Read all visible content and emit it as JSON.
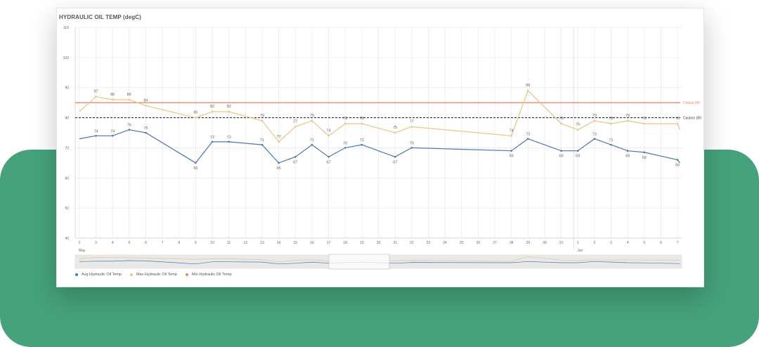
{
  "title": "HYDRAULIC OIL TEMP (degC)",
  "colors": {
    "avg": "#4a78ad",
    "max": "#e8c585",
    "critical": "#ef8668",
    "caution": "#333333",
    "grid": "#ece8f2",
    "minimap_bg": "#e9e9e9",
    "green": "#45a27c"
  },
  "chart_data": {
    "type": "line",
    "title": "HYDRAULIC OIL TEMP (degC)",
    "ylim": [
      40,
      110
    ],
    "yticks": [
      40,
      50,
      60,
      70,
      80,
      90,
      100,
      110
    ],
    "x_ticks": [
      {
        "day": 2,
        "label": "2"
      },
      {
        "day": 3,
        "label": "3"
      },
      {
        "day": 4,
        "label": "4"
      },
      {
        "day": 5,
        "label": "5"
      },
      {
        "day": 6,
        "label": "6"
      },
      {
        "day": 7,
        "label": "7"
      },
      {
        "day": 8,
        "label": "8"
      },
      {
        "day": 9,
        "label": "9"
      },
      {
        "day": 10,
        "label": "10"
      },
      {
        "day": 11,
        "label": "11"
      },
      {
        "day": 12,
        "label": "12"
      },
      {
        "day": 13,
        "label": "13"
      },
      {
        "day": 14,
        "label": "14"
      },
      {
        "day": 15,
        "label": "15"
      },
      {
        "day": 16,
        "label": "16"
      },
      {
        "day": 17,
        "label": "17"
      },
      {
        "day": 18,
        "label": "18"
      },
      {
        "day": 19,
        "label": "19"
      },
      {
        "day": 20,
        "label": "20"
      },
      {
        "day": 21,
        "label": "21"
      },
      {
        "day": 22,
        "label": "22"
      },
      {
        "day": 23,
        "label": "23"
      },
      {
        "day": 24,
        "label": "24"
      },
      {
        "day": 25,
        "label": "25"
      },
      {
        "day": 26,
        "label": "26"
      },
      {
        "day": 27,
        "label": "27"
      },
      {
        "day": 28,
        "label": "28"
      },
      {
        "day": 29,
        "label": "29"
      },
      {
        "day": 30,
        "label": "30"
      },
      {
        "day": 31,
        "label": "31"
      },
      {
        "day": 32,
        "label": "1"
      },
      {
        "day": 33,
        "label": "2"
      },
      {
        "day": 34,
        "label": "3"
      },
      {
        "day": 35,
        "label": "4"
      },
      {
        "day": 36,
        "label": "5"
      },
      {
        "day": 37,
        "label": "6"
      },
      {
        "day": 38,
        "label": "7"
      }
    ],
    "month_labels": [
      {
        "day": 2,
        "label": "May"
      },
      {
        "day": 32,
        "label": "Jun"
      }
    ],
    "series": [
      {
        "name": "Avg Hydraulic Oil Temp",
        "key": "avg",
        "points": [
          {
            "day": 2,
            "value": 73,
            "label": ""
          },
          {
            "day": 3,
            "value": 74,
            "label": "74"
          },
          {
            "day": 4,
            "value": 74,
            "label": "74"
          },
          {
            "day": 5,
            "value": 76,
            "label": "76"
          },
          {
            "day": 6,
            "value": 75,
            "label": "75"
          },
          {
            "day": 9,
            "value": 65,
            "label": "65"
          },
          {
            "day": 10,
            "value": 72,
            "label": "72"
          },
          {
            "day": 11,
            "value": 72,
            "label": "72"
          },
          {
            "day": 13,
            "value": 71,
            "label": "71"
          },
          {
            "day": 14,
            "value": 65,
            "label": "65"
          },
          {
            "day": 15,
            "value": 67,
            "label": "67"
          },
          {
            "day": 16,
            "value": 71,
            "label": "71"
          },
          {
            "day": 17,
            "value": 67,
            "label": "67"
          },
          {
            "day": 18,
            "value": 70,
            "label": "70"
          },
          {
            "day": 19,
            "value": 71,
            "label": "71"
          },
          {
            "day": 21,
            "value": 67,
            "label": "67"
          },
          {
            "day": 22,
            "value": 70,
            "label": "70"
          },
          {
            "day": 28,
            "value": 69,
            "label": "69"
          },
          {
            "day": 29,
            "value": 73,
            "label": "73"
          },
          {
            "day": 31,
            "value": 69,
            "label": "69"
          },
          {
            "day": 32,
            "value": 69,
            "label": "69"
          },
          {
            "day": 33,
            "value": 73,
            "label": "73"
          },
          {
            "day": 34,
            "value": 71,
            "label": "71"
          },
          {
            "day": 35,
            "value": 69,
            "label": "69"
          },
          {
            "day": 36,
            "value": 68.5,
            "label": "69"
          },
          {
            "day": 38,
            "value": 66,
            "label": "66"
          },
          {
            "day": 38.15,
            "value": 65,
            "label": ""
          }
        ]
      },
      {
        "name": "Max Hydraulic Oil Temp",
        "key": "max",
        "points": [
          {
            "day": 2,
            "value": 82,
            "label": ""
          },
          {
            "day": 3,
            "value": 87,
            "label": "87"
          },
          {
            "day": 4,
            "value": 86,
            "label": "86"
          },
          {
            "day": 5,
            "value": 86,
            "label": "86"
          },
          {
            "day": 6,
            "value": 84,
            "label": "84"
          },
          {
            "day": 9,
            "value": 80,
            "label": "80"
          },
          {
            "day": 10,
            "value": 82,
            "label": "82"
          },
          {
            "day": 11,
            "value": 82,
            "label": "82"
          },
          {
            "day": 13,
            "value": 79,
            "label": "79"
          },
          {
            "day": 14,
            "value": 72,
            "label": "72"
          },
          {
            "day": 15,
            "value": 77,
            "label": "77"
          },
          {
            "day": 16,
            "value": 79,
            "label": "79"
          },
          {
            "day": 17,
            "value": 74,
            "label": "74"
          },
          {
            "day": 18,
            "value": 78,
            "label": "78"
          },
          {
            "day": 19,
            "value": 78,
            "label": "78"
          },
          {
            "day": 21,
            "value": 75,
            "label": "75"
          },
          {
            "day": 22,
            "value": 77,
            "label": "77"
          },
          {
            "day": 28,
            "value": 74,
            "label": "74"
          },
          {
            "day": 29,
            "value": 89,
            "label": "89"
          },
          {
            "day": 31,
            "value": 78,
            "label": "78"
          },
          {
            "day": 32,
            "value": 76,
            "label": "76"
          },
          {
            "day": 33,
            "value": 79,
            "label": "79"
          },
          {
            "day": 34,
            "value": 78,
            "label": "78"
          },
          {
            "day": 35,
            "value": 79,
            "label": "79"
          },
          {
            "day": 36,
            "value": 78,
            "label": "78"
          },
          {
            "day": 38,
            "value": 78,
            "label": "78"
          },
          {
            "day": 38.15,
            "value": 76,
            "label": ""
          }
        ]
      }
    ],
    "reference_lines": [
      {
        "key": "critical",
        "value": 85,
        "label": "Critical (85",
        "style": "solid"
      },
      {
        "key": "caution",
        "value": 80,
        "label": "Caution (80",
        "style": "dashed"
      }
    ],
    "legend": {
      "placement": "bottom-left",
      "items": [
        {
          "label": "Avg Hydraulic Oil Temp",
          "color_key": "avg"
        },
        {
          "label": "Max Hydraulic Oil Temp",
          "color_key": "max"
        },
        {
          "label": "Min Hydraulic Oil Temp",
          "color_key": "critical"
        }
      ]
    },
    "grid": true,
    "range_navigator": true
  }
}
